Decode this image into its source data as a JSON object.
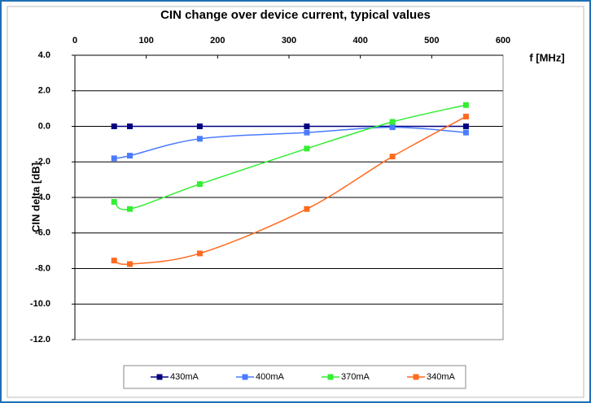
{
  "chart_data": {
    "type": "line",
    "title": "CIN change over device current, typical values",
    "xlabel": "f [MHz]",
    "ylabel": "CIN delta [dB]",
    "x": [
      55,
      77,
      175,
      325,
      445,
      548
    ],
    "series": [
      {
        "name": "430mA",
        "color": "#000080",
        "values": [
          0,
          0,
          0,
          0,
          0,
          0
        ]
      },
      {
        "name": "400mA",
        "color": "#4a7bff",
        "values": [
          -1.8,
          -1.65,
          -0.7,
          -0.35,
          -0.05,
          -0.35
        ]
      },
      {
        "name": "370mA",
        "color": "#33ee33",
        "values": [
          -4.25,
          -4.65,
          -3.25,
          -1.25,
          0.25,
          1.2
        ]
      },
      {
        "name": "340mA",
        "color": "#ff6a1f",
        "values": [
          -7.55,
          -7.75,
          -7.15,
          -4.65,
          -1.7,
          0.55
        ]
      }
    ],
    "xlim": [
      0,
      600
    ],
    "xticks": [
      0,
      100,
      200,
      300,
      400,
      500,
      600
    ],
    "ylim": [
      -12,
      4
    ],
    "yticks": [
      {
        "value": 4,
        "label": "4.0"
      },
      {
        "value": 2,
        "label": "2.0"
      },
      {
        "value": 0,
        "label": "0.0"
      },
      {
        "value": -2,
        "label": "-2.0"
      },
      {
        "value": -4,
        "label": "-4.0"
      },
      {
        "value": -6,
        "label": "-6.0"
      },
      {
        "value": -8,
        "label": "-8.0"
      },
      {
        "value": -10,
        "label": "-10.0"
      },
      {
        "value": -12,
        "label": "-12.0"
      }
    ],
    "grid": true,
    "smooth": true,
    "legend": "bottom"
  }
}
